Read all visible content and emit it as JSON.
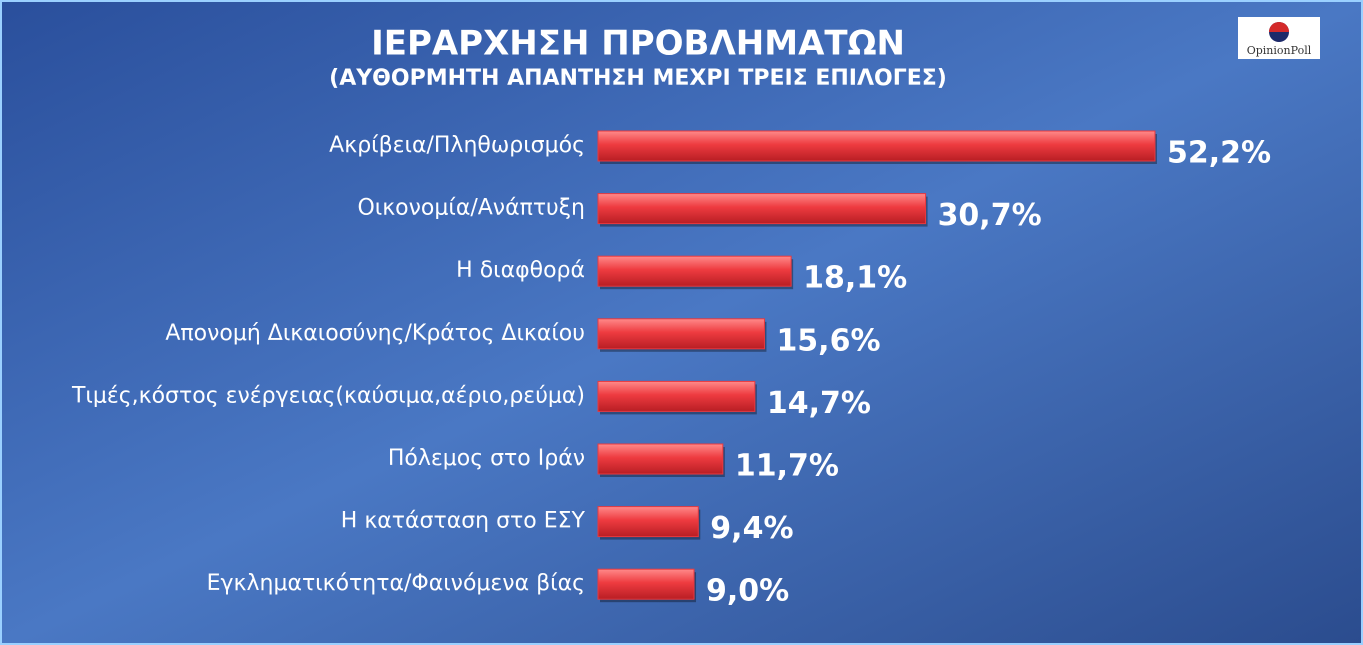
{
  "chart_data": {
    "type": "bar",
    "orientation": "horizontal",
    "title": "ΙΕΡΑΡΧΗΣΗ  ΠΡΟΒΛΗΜΑΤΩΝ",
    "subtitle": "(ΑΥΘΟΡΜΗΤΗ  ΑΠΑΝΤΗΣΗ  ΜΕΧΡΙ  ΤΡΕΙΣ  ΕΠΙΛΟΓΕΣ)",
    "source": "OpinionPoll",
    "categories": [
      "Ακρίβεια/Πληθωρισμός",
      "Οικονομία/Ανάπτυξη",
      "Η  διαφθορά",
      "Απονομή  Δικαιοσύνης/Κράτος  Δικαίου",
      "Τιμές,κόστος  ενέργειας(καύσιμα,αέριο,ρεύμα)",
      "Πόλεμος  στο  Ιράν",
      "Η  κατάσταση  στο  ΕΣΥ",
      "Εγκληματικότητα/Φαινόμενα  βίας"
    ],
    "values": [
      52.2,
      30.7,
      18.1,
      15.6,
      14.7,
      11.7,
      9.4,
      9.0
    ],
    "value_labels": [
      "52,2%",
      "30,7%",
      "18,1%",
      "15,6%",
      "14,7%",
      "11,7%",
      "9,4%",
      "9,0%"
    ],
    "color": "#e8393f"
  }
}
